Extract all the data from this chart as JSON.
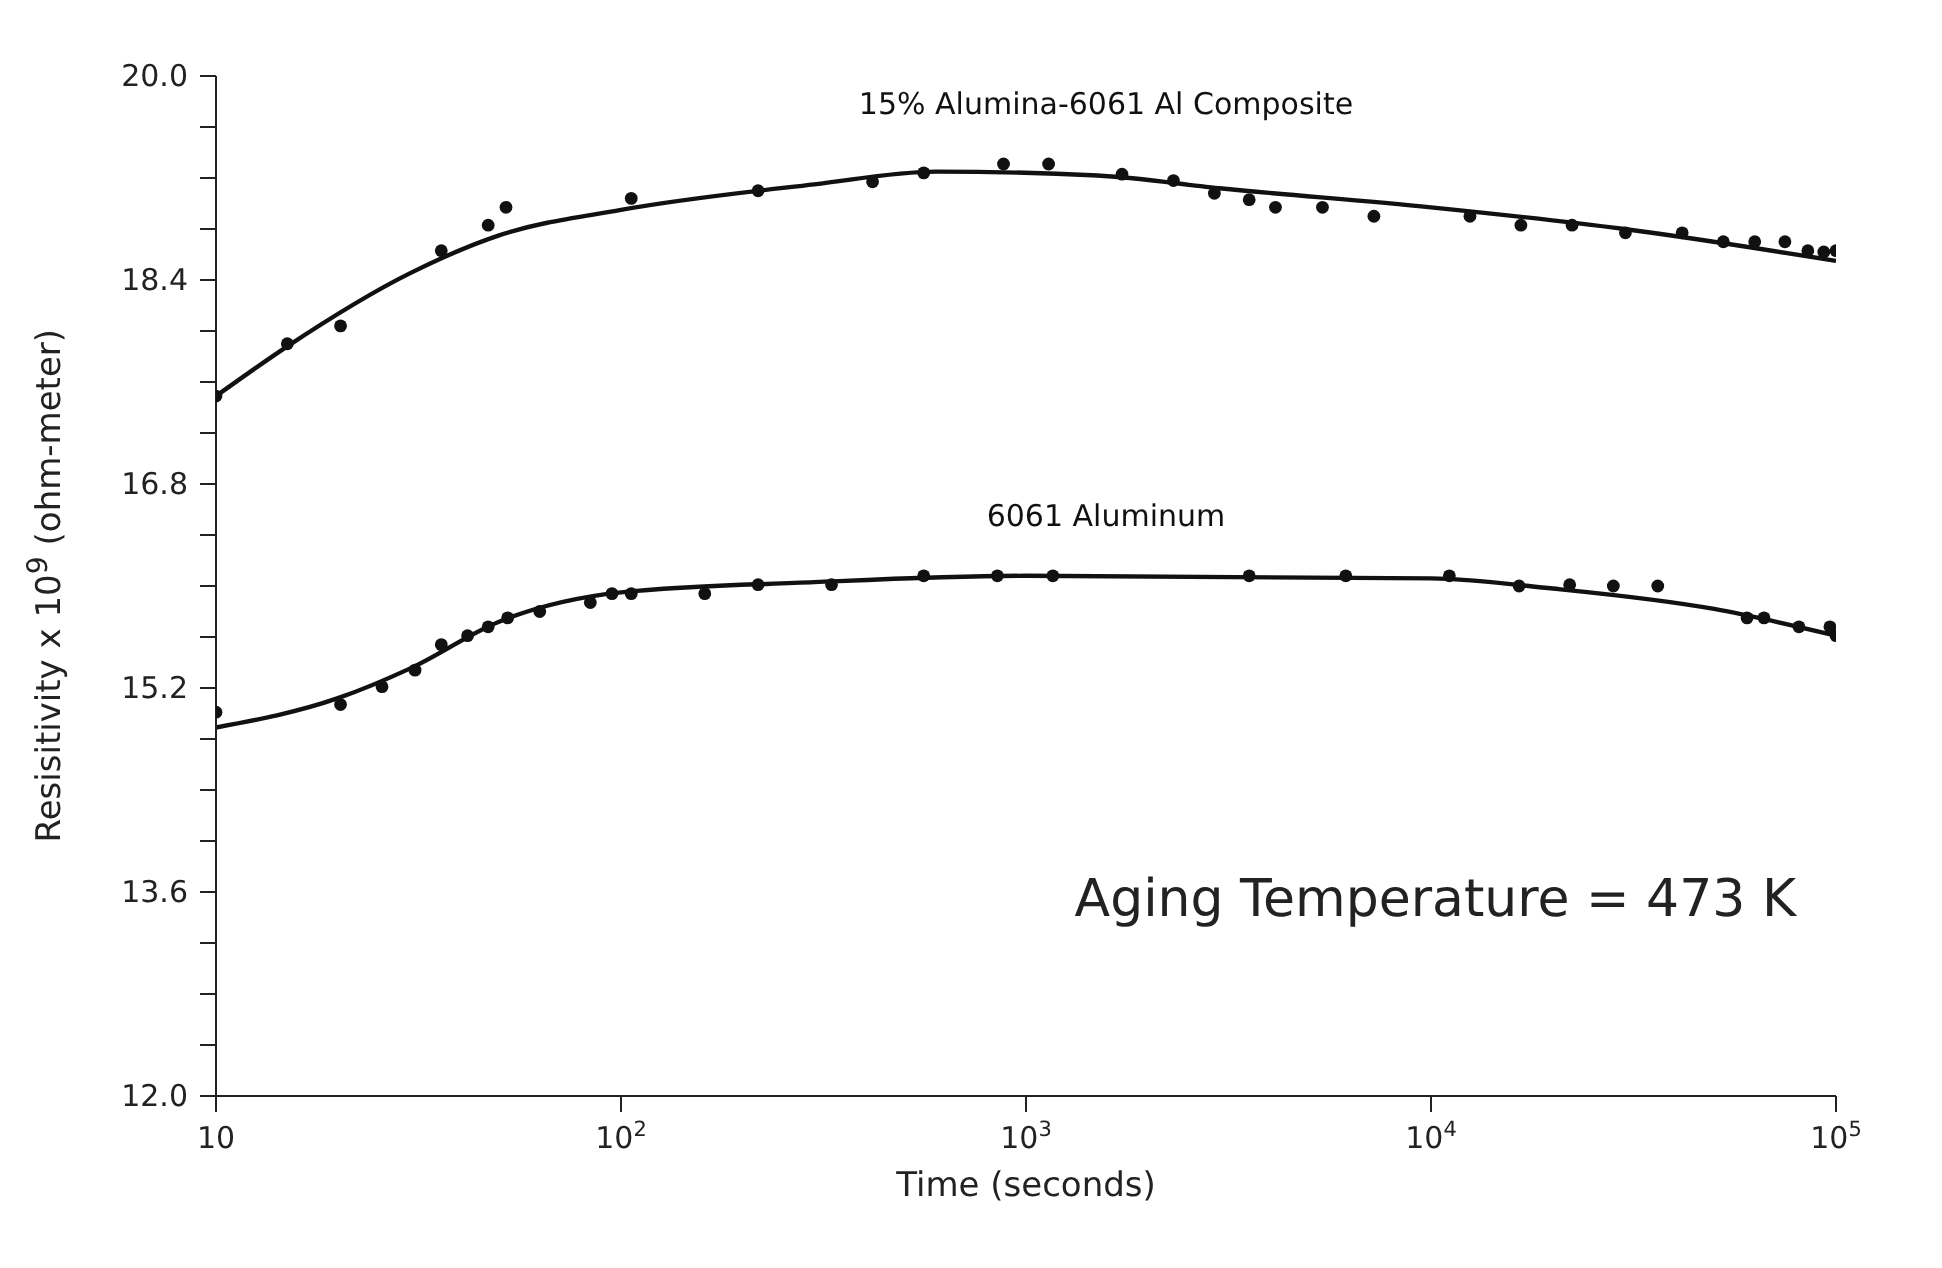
{
  "chart_data": {
    "type": "scatter",
    "xlabel": "Time (seconds)",
    "ylabel": "Resisitivity x 10$^{9}$ (ohm-meter)",
    "log": "x",
    "xlim": [
      10,
      100000
    ],
    "xticks": [
      {
        "value": 10,
        "label": "10"
      },
      {
        "value": 100,
        "label": "10$^{2}$"
      },
      {
        "value": 1000,
        "label": "10$^{3}$"
      },
      {
        "value": 10000,
        "label": "10$^{4}$"
      },
      {
        "value": 100000,
        "label": "10$^{5}$"
      }
    ],
    "ylim": [
      12,
      20
    ],
    "yticks": [
      {
        "value": 12,
        "label": "12.0"
      },
      {
        "value": 12.4,
        "label": null
      },
      {
        "value": 12.8,
        "label": null
      },
      {
        "value": 13.2,
        "label": null
      },
      {
        "value": 13.6,
        "label": "13.6"
      },
      {
        "value": 14,
        "label": null
      },
      {
        "value": 14.4,
        "label": null
      },
      {
        "value": 14.8,
        "label": null
      },
      {
        "value": 15.2,
        "label": "15.2"
      },
      {
        "value": 15.6,
        "label": null
      },
      {
        "value": 16,
        "label": null
      },
      {
        "value": 16.4,
        "label": null
      },
      {
        "value": 16.8,
        "label": "16.8"
      },
      {
        "value": 17.2,
        "label": null
      },
      {
        "value": 17.6,
        "label": null
      },
      {
        "value": 18,
        "label": null
      },
      {
        "value": 18.4,
        "label": "18.4"
      },
      {
        "value": 18.8,
        "label": null
      },
      {
        "value": 19.2,
        "label": null
      },
      {
        "value": 19.6,
        "label": null
      },
      {
        "value": 20,
        "label": "20.0"
      }
    ],
    "marker": "circle",
    "annotations": [
      "Aging Temperature = 473 K"
    ],
    "series": [
      {
        "name": "15% Alumina-6061 Al Composite",
        "color": "#111111",
        "x": [
          10,
          15,
          20.3,
          36,
          47,
          52,
          106,
          218,
          418,
          559,
          880,
          1137,
          1726,
          2312,
          2918,
          3557,
          4130,
          5395,
          7228,
          12480,
          16670,
          22300,
          30200,
          41700,
          52700,
          63000,
          74800,
          85200,
          93300,
          100000
        ],
        "values": [
          17.49,
          17.9,
          18.04,
          18.63,
          18.83,
          18.97,
          19.04,
          19.1,
          19.17,
          19.24,
          19.31,
          19.31,
          19.23,
          19.18,
          19.08,
          19.03,
          18.97,
          18.97,
          18.9,
          18.9,
          18.83,
          18.83,
          18.77,
          18.77,
          18.7,
          18.7,
          18.7,
          18.63,
          18.62,
          18.63
        ]
      },
      {
        "type": "line",
        "color": "#111111",
        "marker": "none",
        "x": [
          10,
          15,
          30,
          50,
          100,
          300,
          600,
          1500,
          3000,
          10000,
          30000,
          100000
        ],
        "values": [
          17.49,
          17.88,
          18.45,
          18.75,
          18.95,
          19.15,
          19.25,
          19.22,
          19.12,
          18.97,
          18.8,
          18.55
        ]
      },
      {
        "name": "6061 Aluminum",
        "color": "#111111",
        "x": [
          10,
          20.3,
          25.7,
          31,
          36,
          41.8,
          47,
          52.5,
          63,
          84,
          95,
          106,
          161,
          218,
          331,
          559,
          850,
          1165,
          3557,
          6160,
          11100,
          16500,
          22000,
          28200,
          36300,
          60300,
          66400,
          81000,
          96600,
          100000
        ],
        "values": [
          15.01,
          15.07,
          15.21,
          15.34,
          15.54,
          15.61,
          15.68,
          15.75,
          15.8,
          15.87,
          15.94,
          15.94,
          15.94,
          16.01,
          16.01,
          16.08,
          16.08,
          16.08,
          16.08,
          16.08,
          16.08,
          16,
          16.01,
          16,
          16,
          15.75,
          15.75,
          15.68,
          15.68,
          15.61
        ]
      },
      {
        "type": "line",
        "color": "#111111",
        "marker": "none",
        "x": [
          10,
          20,
          30,
          50,
          100,
          300,
          1000,
          10000,
          20000,
          50000,
          100000
        ],
        "values": [
          14.89,
          15.12,
          15.35,
          15.72,
          15.95,
          16.03,
          16.08,
          16.06,
          15.98,
          15.82,
          15.61
        ]
      }
    ]
  }
}
